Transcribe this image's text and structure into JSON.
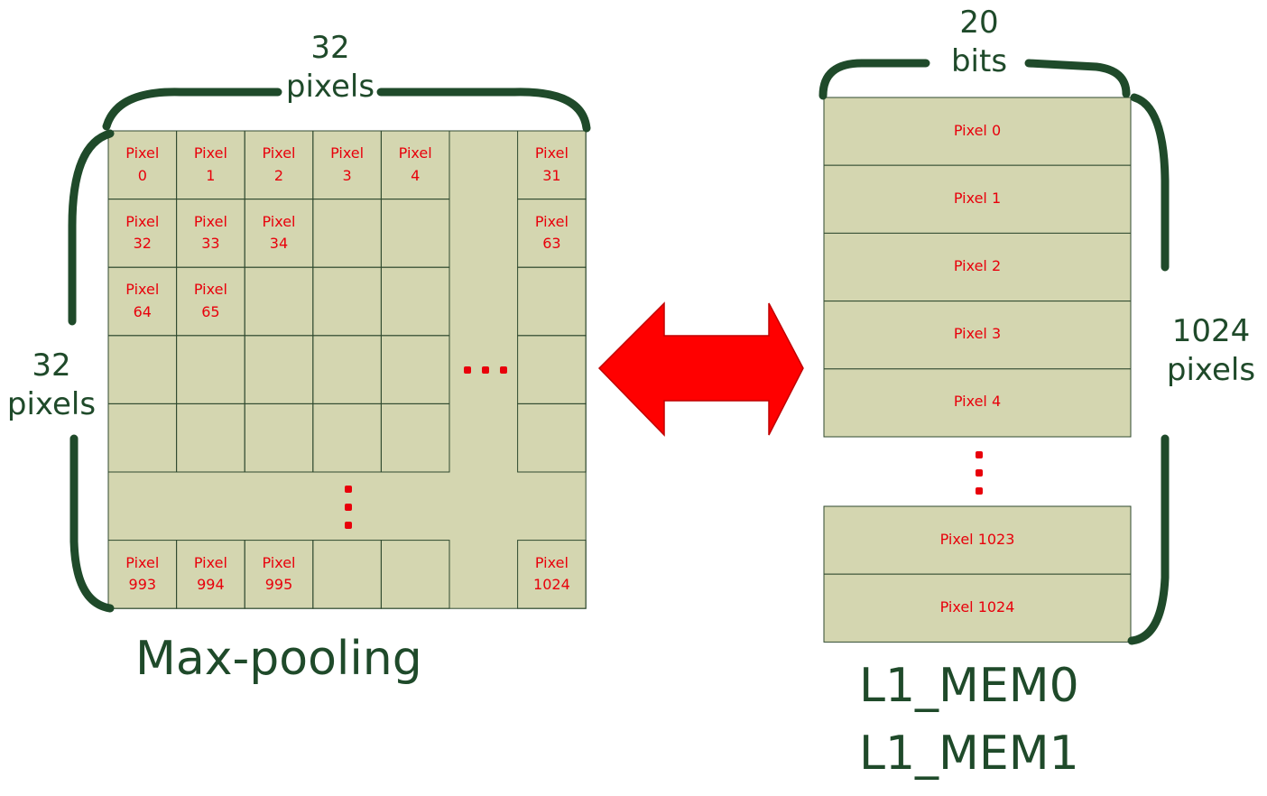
{
  "grid_width_label": "32\npixels",
  "grid_height_label": "32\npixels",
  "mem_width_label": "20\nbits",
  "mem_depth_label": "1024\npixels",
  "grid_title": "Max-pooling",
  "mem_title_0": "L1_MEM0",
  "mem_title_1": "L1_MEM1",
  "grid_cells": [
    {
      "label": "Pixel\n0",
      "col": 0,
      "row": 0
    },
    {
      "label": "Pixel\n1",
      "col": 1,
      "row": 0
    },
    {
      "label": "Pixel\n2",
      "col": 2,
      "row": 0
    },
    {
      "label": "Pixel\n3",
      "col": 3,
      "row": 0
    },
    {
      "label": "Pixel\n4",
      "col": 4,
      "row": 0
    },
    {
      "label": "Pixel\n31",
      "col": 6,
      "row": 0
    },
    {
      "label": "Pixel\n32",
      "col": 0,
      "row": 1
    },
    {
      "label": "Pixel\n33",
      "col": 1,
      "row": 1
    },
    {
      "label": "Pixel\n34",
      "col": 2,
      "row": 1
    },
    {
      "label": "Pixel\n63",
      "col": 6,
      "row": 1
    },
    {
      "label": "Pixel\n64",
      "col": 0,
      "row": 2
    },
    {
      "label": "Pixel\n65",
      "col": 1,
      "row": 2
    },
    {
      "label": "Pixel\n993",
      "col": 0,
      "row": 6
    },
    {
      "label": "Pixel\n994",
      "col": 1,
      "row": 6
    },
    {
      "label": "Pixel\n995",
      "col": 2,
      "row": 6
    },
    {
      "label": "Pixel\n1024",
      "col": 6,
      "row": 6
    }
  ],
  "mem_rows_top": [
    "Pixel 0",
    "Pixel 1",
    "Pixel 2",
    "Pixel 3",
    "Pixel 4"
  ],
  "mem_rows_bottom": [
    "Pixel 1023",
    "Pixel 1024"
  ],
  "colors": {
    "cell_fill": "#d4d6b0",
    "cell_border": "#2f4a2f",
    "bracket": "#1f4a2a",
    "pixel_text": "#e8000b",
    "arrow": "#ff0000",
    "arrow_border": "#c00000"
  }
}
